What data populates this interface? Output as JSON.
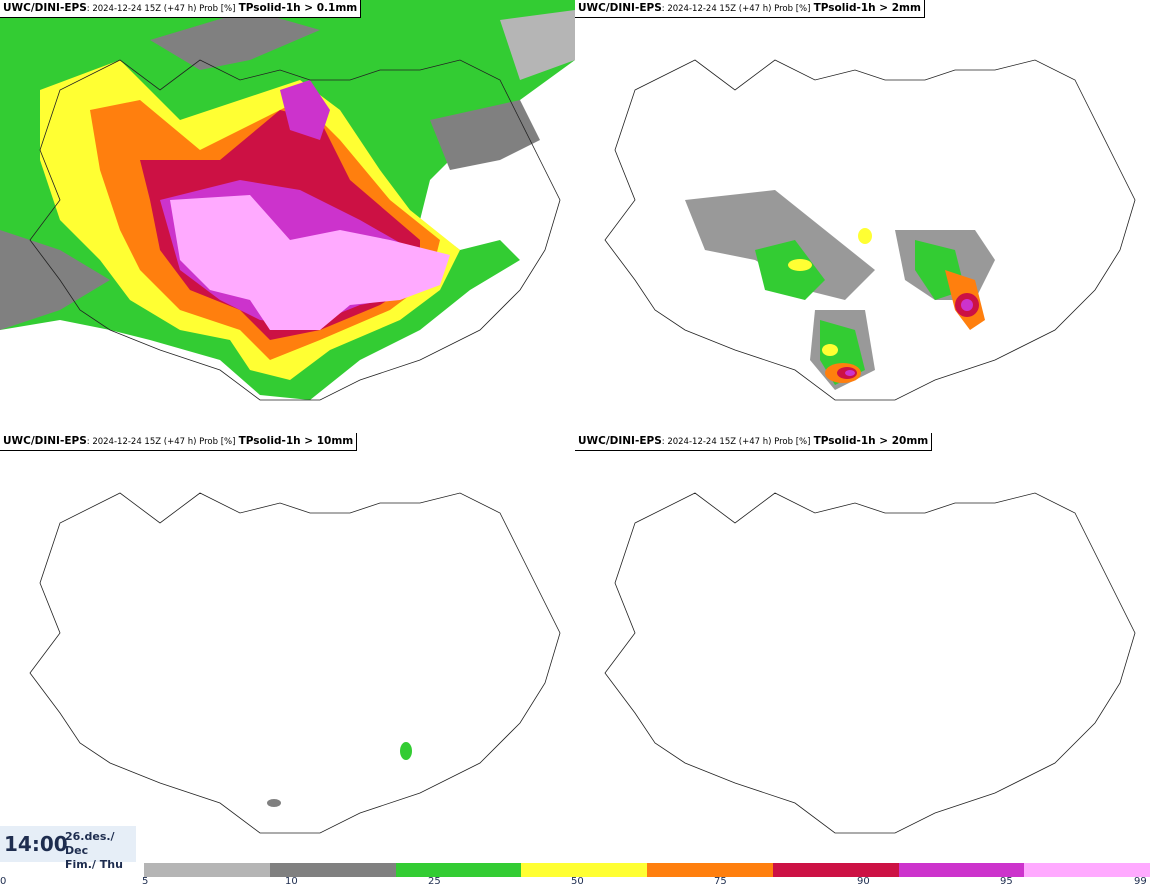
{
  "panels": [
    {
      "model": "UWC/DINI-EPS",
      "meta": ": 2024-12-24 15Z (+47 h) Prob [%]",
      "variable": "TPsolid-1h > 0.1mm"
    },
    {
      "model": "UWC/DINI-EPS",
      "meta": ": 2024-12-24 15Z (+47 h) Prob [%]",
      "variable": "TPsolid-1h > 2mm"
    },
    {
      "model": "UWC/DINI-EPS",
      "meta": ": 2024-12-24 15Z (+47 h) Prob [%]",
      "variable": "TPsolid-1h > 10mm"
    },
    {
      "model": "UWC/DINI-EPS",
      "meta": ": 2024-12-24 15Z (+47 h) Prob [%]",
      "variable": "TPsolid-1h > 20mm"
    }
  ],
  "clock": {
    "time": "14:00",
    "date_line1": "26.des./ Dec",
    "date_line2": "Fim./ Thu"
  },
  "colorbar": {
    "colors": [
      "#b5b5b5",
      "#808080",
      "#33cc33",
      "#ffff33",
      "#ff7f0e",
      "#cc1144",
      "#cc33cc",
      "#ffaaff"
    ],
    "ticks": [
      "0",
      "5",
      "10",
      "25",
      "50",
      "75",
      "90",
      "95",
      "99"
    ]
  }
}
